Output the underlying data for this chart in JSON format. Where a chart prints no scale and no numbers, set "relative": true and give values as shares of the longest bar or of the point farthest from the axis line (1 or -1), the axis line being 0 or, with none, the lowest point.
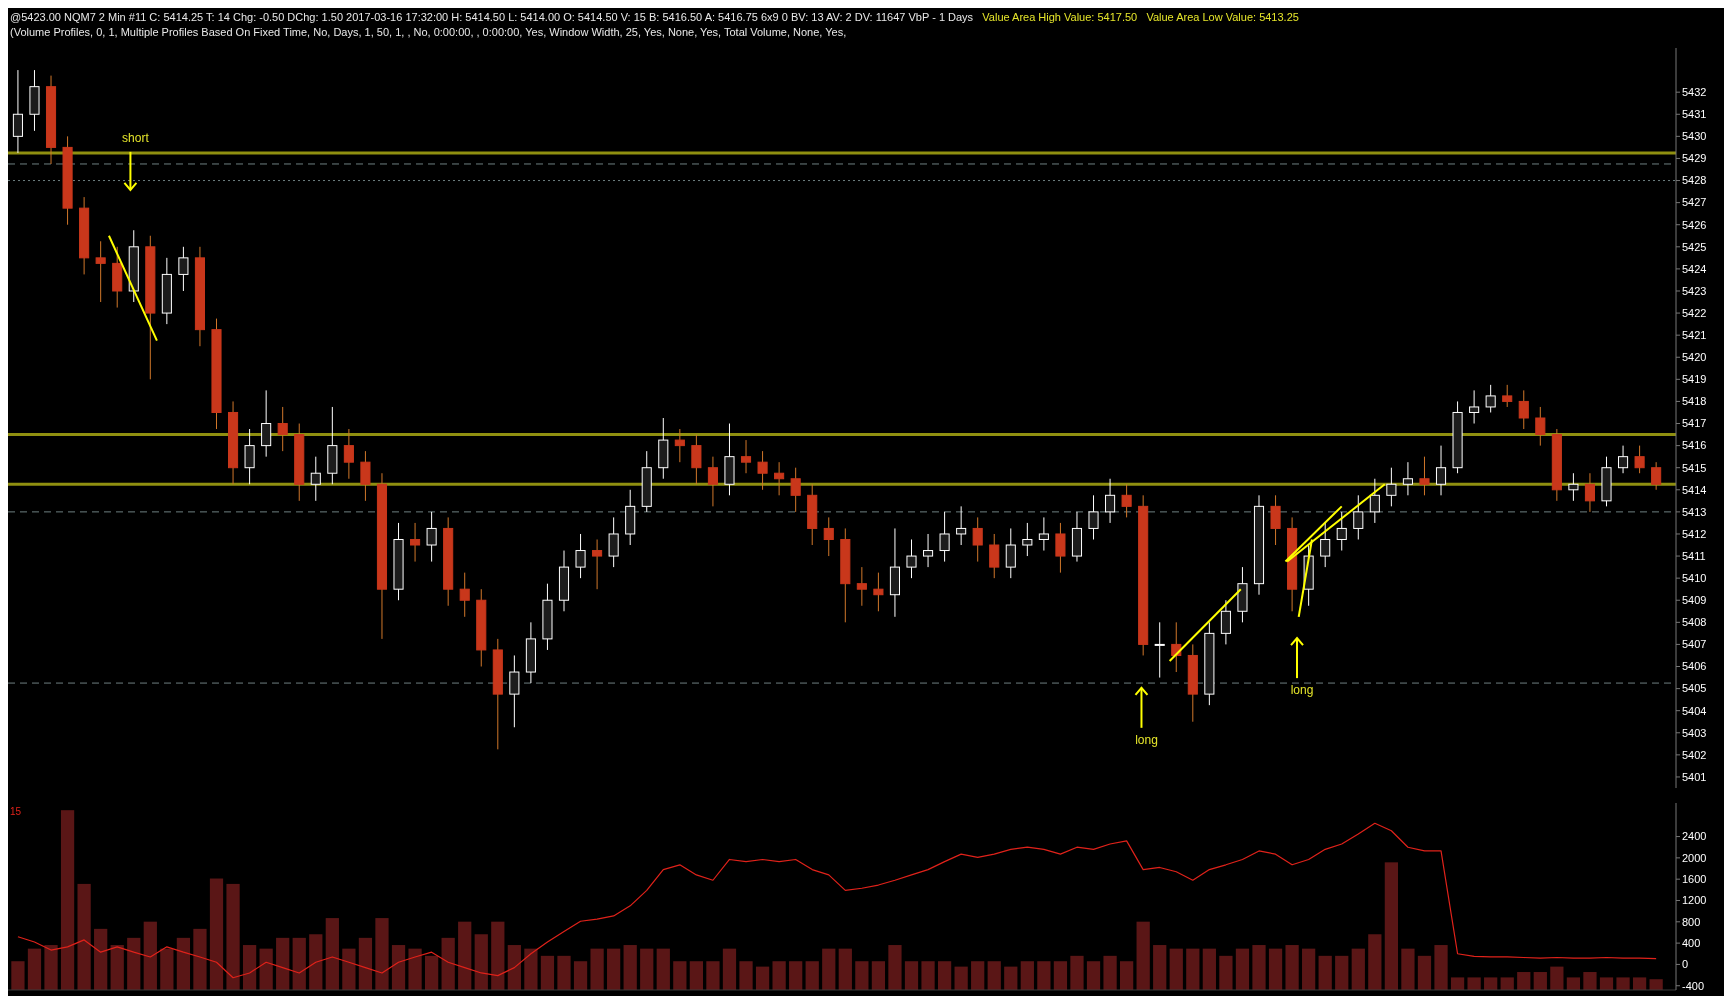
{
  "chart_data": [
    {
      "type": "candlestick",
      "tick_labels": "y",
      "categories": [
        null,
        null,
        null,
        null,
        null,
        null,
        null,
        null,
        null,
        null,
        null,
        null,
        null,
        null,
        null,
        null,
        null,
        null,
        null,
        null,
        null,
        null,
        null,
        null,
        null,
        null,
        null,
        null,
        null,
        null,
        null,
        null,
        null,
        null,
        null,
        null,
        null,
        null,
        null,
        null,
        null,
        null,
        null,
        null,
        null,
        null,
        null,
        null,
        null,
        null,
        null,
        null,
        null,
        null,
        null,
        null,
        null,
        null,
        null,
        null,
        null,
        null,
        null,
        null,
        null,
        null,
        null,
        null,
        null,
        null,
        null,
        null,
        null,
        null,
        null,
        null,
        null,
        null,
        null,
        null,
        null,
        null,
        null,
        null,
        null,
        null,
        null,
        null,
        null,
        null,
        null,
        null,
        null,
        null,
        null,
        null,
        null,
        null,
        null,
        null
      ],
      "ylim": [
        5400.5,
        5434
      ],
      "yticks": [
        5401,
        5402,
        5403,
        5404,
        5405,
        5406,
        5407,
        5408,
        5409,
        5410,
        5411,
        5412,
        5413,
        5414,
        5415,
        5416,
        5417,
        5418,
        5419,
        5420,
        5421,
        5422,
        5423,
        5424,
        5425,
        5426,
        5427,
        5428,
        5429,
        5430,
        5431,
        5432
      ],
      "ohlc": [
        [
          5430,
          5433,
          5429.25,
          5431
        ],
        [
          5431,
          5433,
          5430.25,
          5432.25
        ],
        [
          5432.25,
          5432.75,
          5428.75,
          5429.5
        ],
        [
          5429.5,
          5430,
          5426,
          5426.75
        ],
        [
          5426.75,
          5427.25,
          5423.75,
          5424.5
        ],
        [
          5424.5,
          5425.25,
          5422.5,
          5424.25
        ],
        [
          5424.25,
          5425,
          5422.25,
          5423
        ],
        [
          5423,
          5425.75,
          5422.5,
          5425
        ],
        [
          5425,
          5425.5,
          5419,
          5422
        ],
        [
          5422,
          5424.5,
          5421.5,
          5423.75
        ],
        [
          5423.75,
          5425,
          5423,
          5424.5
        ],
        [
          5424.5,
          5425,
          5420.5,
          5421.25
        ],
        [
          5421.25,
          5421.75,
          5416.75,
          5417.5
        ],
        [
          5417.5,
          5418,
          5414.25,
          5415
        ],
        [
          5415,
          5416.75,
          5414.25,
          5416
        ],
        [
          5416,
          5418.5,
          5415.5,
          5417
        ],
        [
          5417,
          5417.75,
          5415.75,
          5416.5
        ],
        [
          5416.5,
          5417,
          5413.5,
          5414.25
        ],
        [
          5414.25,
          5415.5,
          5413.5,
          5414.75
        ],
        [
          5414.75,
          5417.75,
          5414.25,
          5416
        ],
        [
          5416,
          5416.75,
          5414.5,
          5415.25
        ],
        [
          5415.25,
          5415.75,
          5413.5,
          5414.25
        ],
        [
          5414.25,
          5414.75,
          5407.25,
          5409.5
        ],
        [
          5409.5,
          5412.5,
          5409,
          5411.75
        ],
        [
          5411.75,
          5412.5,
          5410.75,
          5411.5
        ],
        [
          5411.5,
          5413,
          5410.75,
          5412.25
        ],
        [
          5412.25,
          5412.75,
          5408.75,
          5409.5
        ],
        [
          5409.5,
          5410.25,
          5408.25,
          5409
        ],
        [
          5409,
          5409.5,
          5406,
          5406.75
        ],
        [
          5406.75,
          5407.25,
          5402.25,
          5404.75
        ],
        [
          5404.75,
          5406.5,
          5403.25,
          5405.75
        ],
        [
          5405.75,
          5408,
          5405.25,
          5407.25
        ],
        [
          5407.25,
          5409.75,
          5406.75,
          5409
        ],
        [
          5409,
          5411.25,
          5408.5,
          5410.5
        ],
        [
          5410.5,
          5412,
          5410,
          5411.25
        ],
        [
          5411.25,
          5411.75,
          5409.5,
          5411
        ],
        [
          5411,
          5412.75,
          5410.5,
          5412
        ],
        [
          5412,
          5414,
          5411.5,
          5413.25
        ],
        [
          5413.25,
          5415.75,
          5413,
          5415
        ],
        [
          5415,
          5417.25,
          5414.5,
          5416.25
        ],
        [
          5416.25,
          5416.75,
          5415.25,
          5416
        ],
        [
          5416,
          5416.5,
          5414.25,
          5415
        ],
        [
          5415,
          5415.5,
          5413.25,
          5414.25
        ],
        [
          5414.25,
          5417,
          5413.75,
          5415.5
        ],
        [
          5415.5,
          5416.25,
          5414.75,
          5415.25
        ],
        [
          5415.25,
          5415.75,
          5414,
          5414.75
        ],
        [
          5414.75,
          5415.25,
          5413.75,
          5414.5
        ],
        [
          5414.5,
          5415,
          5413,
          5413.75
        ],
        [
          5413.75,
          5414.25,
          5411.5,
          5412.25
        ],
        [
          5412.25,
          5412.75,
          5411,
          5411.75
        ],
        [
          5411.75,
          5412.25,
          5408,
          5409.75
        ],
        [
          5409.75,
          5410.5,
          5408.75,
          5409.5
        ],
        [
          5409.5,
          5410.25,
          5408.5,
          5409.25
        ],
        [
          5409.25,
          5412.25,
          5408.25,
          5410.5
        ],
        [
          5410.5,
          5411.75,
          5410,
          5411
        ],
        [
          5411,
          5412,
          5410.5,
          5411.25
        ],
        [
          5411.25,
          5413,
          5410.75,
          5412
        ],
        [
          5412,
          5413.25,
          5411.5,
          5412.25
        ],
        [
          5412.25,
          5412.75,
          5410.75,
          5411.5
        ],
        [
          5411.5,
          5412,
          5410,
          5410.5
        ],
        [
          5410.5,
          5412.25,
          5410,
          5411.5
        ],
        [
          5411.5,
          5412.5,
          5411,
          5411.75
        ],
        [
          5411.75,
          5412.75,
          5411.25,
          5412
        ],
        [
          5412,
          5412.5,
          5410.25,
          5411
        ],
        [
          5411,
          5413,
          5410.75,
          5412.25
        ],
        [
          5412.25,
          5413.75,
          5411.75,
          5413
        ],
        [
          5413,
          5414.5,
          5412.5,
          5413.75
        ],
        [
          5413.75,
          5414.25,
          5412.75,
          5413.25
        ],
        [
          5413.25,
          5413.75,
          5406.5,
          5407
        ],
        [
          5407,
          5408,
          5405.5,
          5407
        ],
        [
          5407,
          5408,
          5405.75,
          5406.5
        ],
        [
          5406.5,
          5407,
          5403.5,
          5404.75
        ],
        [
          5404.75,
          5408,
          5404.25,
          5407.5
        ],
        [
          5407.5,
          5409,
          5407,
          5408.5
        ],
        [
          5408.5,
          5410.5,
          5408,
          5409.75
        ],
        [
          5409.75,
          5413.75,
          5409.25,
          5413.25
        ],
        [
          5413.25,
          5413.75,
          5411.5,
          5412.25
        ],
        [
          5412.25,
          5412.75,
          5408.5,
          5409.5
        ],
        [
          5409.5,
          5411.5,
          5408.75,
          5411
        ],
        [
          5411,
          5412.5,
          5410.5,
          5411.75
        ],
        [
          5411.75,
          5413,
          5411.25,
          5412.25
        ],
        [
          5412.25,
          5413.75,
          5411.75,
          5413
        ],
        [
          5413,
          5414.5,
          5412.5,
          5413.75
        ],
        [
          5413.75,
          5415,
          5413.25,
          5414.25
        ],
        [
          5414.25,
          5415.25,
          5413.75,
          5414.5
        ],
        [
          5414.5,
          5415.5,
          5413.75,
          5414.25
        ],
        [
          5414.25,
          5416,
          5413.75,
          5415
        ],
        [
          5415,
          5418,
          5414.75,
          5417.5
        ],
        [
          5417.5,
          5418.5,
          5417,
          5417.75
        ],
        [
          5417.75,
          5418.75,
          5417.5,
          5418.25
        ],
        [
          5418.25,
          5418.75,
          5417.75,
          5418
        ],
        [
          5418,
          5418.5,
          5416.75,
          5417.25
        ],
        [
          5417.25,
          5417.75,
          5416,
          5416.5
        ],
        [
          5416.5,
          5416.75,
          5413.5,
          5414
        ],
        [
          5414,
          5414.75,
          5413.5,
          5414.25
        ],
        [
          5414.25,
          5414.75,
          5413,
          5413.5
        ],
        [
          5413.5,
          5415.5,
          5413.25,
          5415
        ],
        [
          5415,
          5416,
          5414.75,
          5415.5
        ],
        [
          5415.5,
          5416,
          5414.75,
          5415
        ],
        [
          5415,
          5415.25,
          5414,
          5414.25
        ]
      ],
      "ref_lines": [
        {
          "axis": "y",
          "value": 5428.75,
          "color": "#6e7f80",
          "line_style": "dashed"
        },
        {
          "axis": "y",
          "value": 5428,
          "color": "#6e7f80",
          "line_style": "dotted"
        },
        {
          "axis": "y",
          "value": 5413,
          "color": "#6e7f80",
          "line_style": "dashed"
        },
        {
          "axis": "y",
          "value": 5405.25,
          "color": "#6e7f80",
          "line_style": "dashed"
        },
        {
          "axis": "y",
          "value": 5429.25,
          "color": "#8f8f10",
          "line_style": "solid"
        },
        {
          "axis": "y",
          "value": 5414.25,
          "color": "#8f8f10",
          "line_style": "solid"
        },
        {
          "axis": "y",
          "value": 5416.5,
          "color": "#8f8f10",
          "line_style": "solid"
        }
      ],
      "annotations": [
        "@5423.00 NQM7 2 Min #11 C: 5414.25 T: 14 Chg: -0.50 DChg: 1.50 2017-03-16 17:32:00 H: 5414.50 L: 5414.00 O: 5414.50 V: 15 B: 5416.50 A: 5416.75 6x9 0 BV: 13 AV: 2 DV: 11647 VbP - 1 Days",
        "Value Area High Value: 5417.50",
        "Value Area Low Value: 5413.25",
        "(Volume Profiles, 0, 1, Multiple Profiles Based On Fixed Time, No, Days, 1, 50, 1, , No, 0:00:00, , 0:00:00, Yes, Window Width, 25, Yes, None, Yes, Total Volume, None, Yes,",
        "short",
        "long",
        "long"
      ]
    },
    {
      "type": "bar",
      "relative": true,
      "color": "#5a1616",
      "categories": [
        null,
        null,
        null,
        null,
        null,
        null,
        null,
        null,
        null,
        null,
        null,
        null,
        null,
        null,
        null,
        null,
        null,
        null,
        null,
        null,
        null,
        null,
        null,
        null,
        null,
        null,
        null,
        null,
        null,
        null,
        null,
        null,
        null,
        null,
        null,
        null,
        null,
        null,
        null,
        null,
        null,
        null,
        null,
        null,
        null,
        null,
        null,
        null,
        null,
        null,
        null,
        null,
        null,
        null,
        null,
        null,
        null,
        null,
        null,
        null,
        null,
        null,
        null,
        null,
        null,
        null,
        null,
        null,
        null,
        null,
        null,
        null,
        null,
        null,
        null,
        null,
        null,
        null,
        null,
        null,
        null,
        null,
        null,
        null,
        null,
        null,
        null,
        null,
        null,
        null,
        null,
        null,
        null,
        null,
        null,
        null,
        null,
        null,
        null,
        null
      ],
      "values": [
        0.16,
        0.23,
        0.25,
        1,
        0.59,
        0.34,
        0.25,
        0.29,
        0.38,
        0.23,
        0.29,
        0.34,
        0.62,
        0.59,
        0.25,
        0.23,
        0.29,
        0.29,
        0.31,
        0.4,
        0.23,
        0.29,
        0.4,
        0.25,
        0.23,
        0.19,
        0.29,
        0.38,
        0.31,
        0.38,
        0.25,
        0.23,
        0.19,
        0.19,
        0.16,
        0.23,
        0.23,
        0.25,
        0.23,
        0.23,
        0.16,
        0.16,
        0.16,
        0.23,
        0.16,
        0.13,
        0.16,
        0.16,
        0.16,
        0.23,
        0.23,
        0.16,
        0.16,
        0.25,
        0.16,
        0.16,
        0.16,
        0.13,
        0.16,
        0.16,
        0.13,
        0.16,
        0.16,
        0.16,
        0.19,
        0.16,
        0.19,
        0.16,
        0.38,
        0.25,
        0.23,
        0.23,
        0.23,
        0.19,
        0.23,
        0.25,
        0.23,
        0.25,
        0.23,
        0.19,
        0.19,
        0.23,
        0.31,
        0.71,
        0.23,
        0.19,
        0.25,
        0.07,
        0.07,
        0.07,
        0.07,
        0.1,
        0.1,
        0.13,
        0.07,
        0.1,
        0.07,
        0.07,
        0.07,
        0.06
      ]
    },
    {
      "type": "line",
      "categories": [
        null,
        null,
        null,
        null,
        null,
        null,
        null,
        null,
        null,
        null,
        null,
        null,
        null,
        null,
        null,
        null,
        null,
        null,
        null,
        null,
        null,
        null,
        null,
        null,
        null,
        null,
        null,
        null,
        null,
        null,
        null,
        null,
        null,
        null,
        null,
        null,
        null,
        null,
        null,
        null,
        null,
        null,
        null,
        null,
        null,
        null,
        null,
        null,
        null,
        null,
        null,
        null,
        null,
        null,
        null,
        null,
        null,
        null,
        null,
        null,
        null,
        null,
        null,
        null,
        null,
        null,
        null,
        null,
        null,
        null,
        null,
        null,
        null,
        null,
        null,
        null,
        null,
        null,
        null,
        null,
        null,
        null,
        null,
        null,
        null,
        null,
        null,
        null,
        null,
        null,
        null,
        null,
        null,
        null,
        null,
        null,
        null,
        null,
        null,
        null
      ],
      "ylim": [
        -480,
        3030
      ],
      "yticks": [
        -400,
        0,
        400,
        800,
        1200,
        1600,
        2000,
        2400
      ],
      "tick_labels": "y",
      "series": [
        {
          "color": "#e0221a",
          "values": [
            520,
            420,
            270,
            330,
            460,
            230,
            330,
            230,
            140,
            330,
            230,
            140,
            40,
            -250,
            -160,
            40,
            -60,
            -160,
            40,
            140,
            40,
            -60,
            -160,
            40,
            140,
            230,
            40,
            -60,
            -160,
            -210,
            -60,
            200,
            420,
            620,
            810,
            850,
            910,
            1100,
            1390,
            1780,
            1870,
            1680,
            1580,
            1970,
            1930,
            1970,
            1930,
            1970,
            1780,
            1680,
            1390,
            1430,
            1490,
            1580,
            1680,
            1780,
            1930,
            2070,
            2010,
            2070,
            2160,
            2200,
            2160,
            2070,
            2200,
            2160,
            2260,
            2320,
            1780,
            1820,
            1740,
            1580,
            1780,
            1870,
            1970,
            2130,
            2070,
            1870,
            1970,
            2160,
            2260,
            2450,
            2650,
            2510,
            2200,
            2130,
            2130,
            200,
            150,
            140,
            140,
            130,
            120,
            130,
            120,
            120,
            130,
            120,
            120,
            110
          ]
        }
      ],
      "annotations": [
        "15"
      ]
    }
  ]
}
